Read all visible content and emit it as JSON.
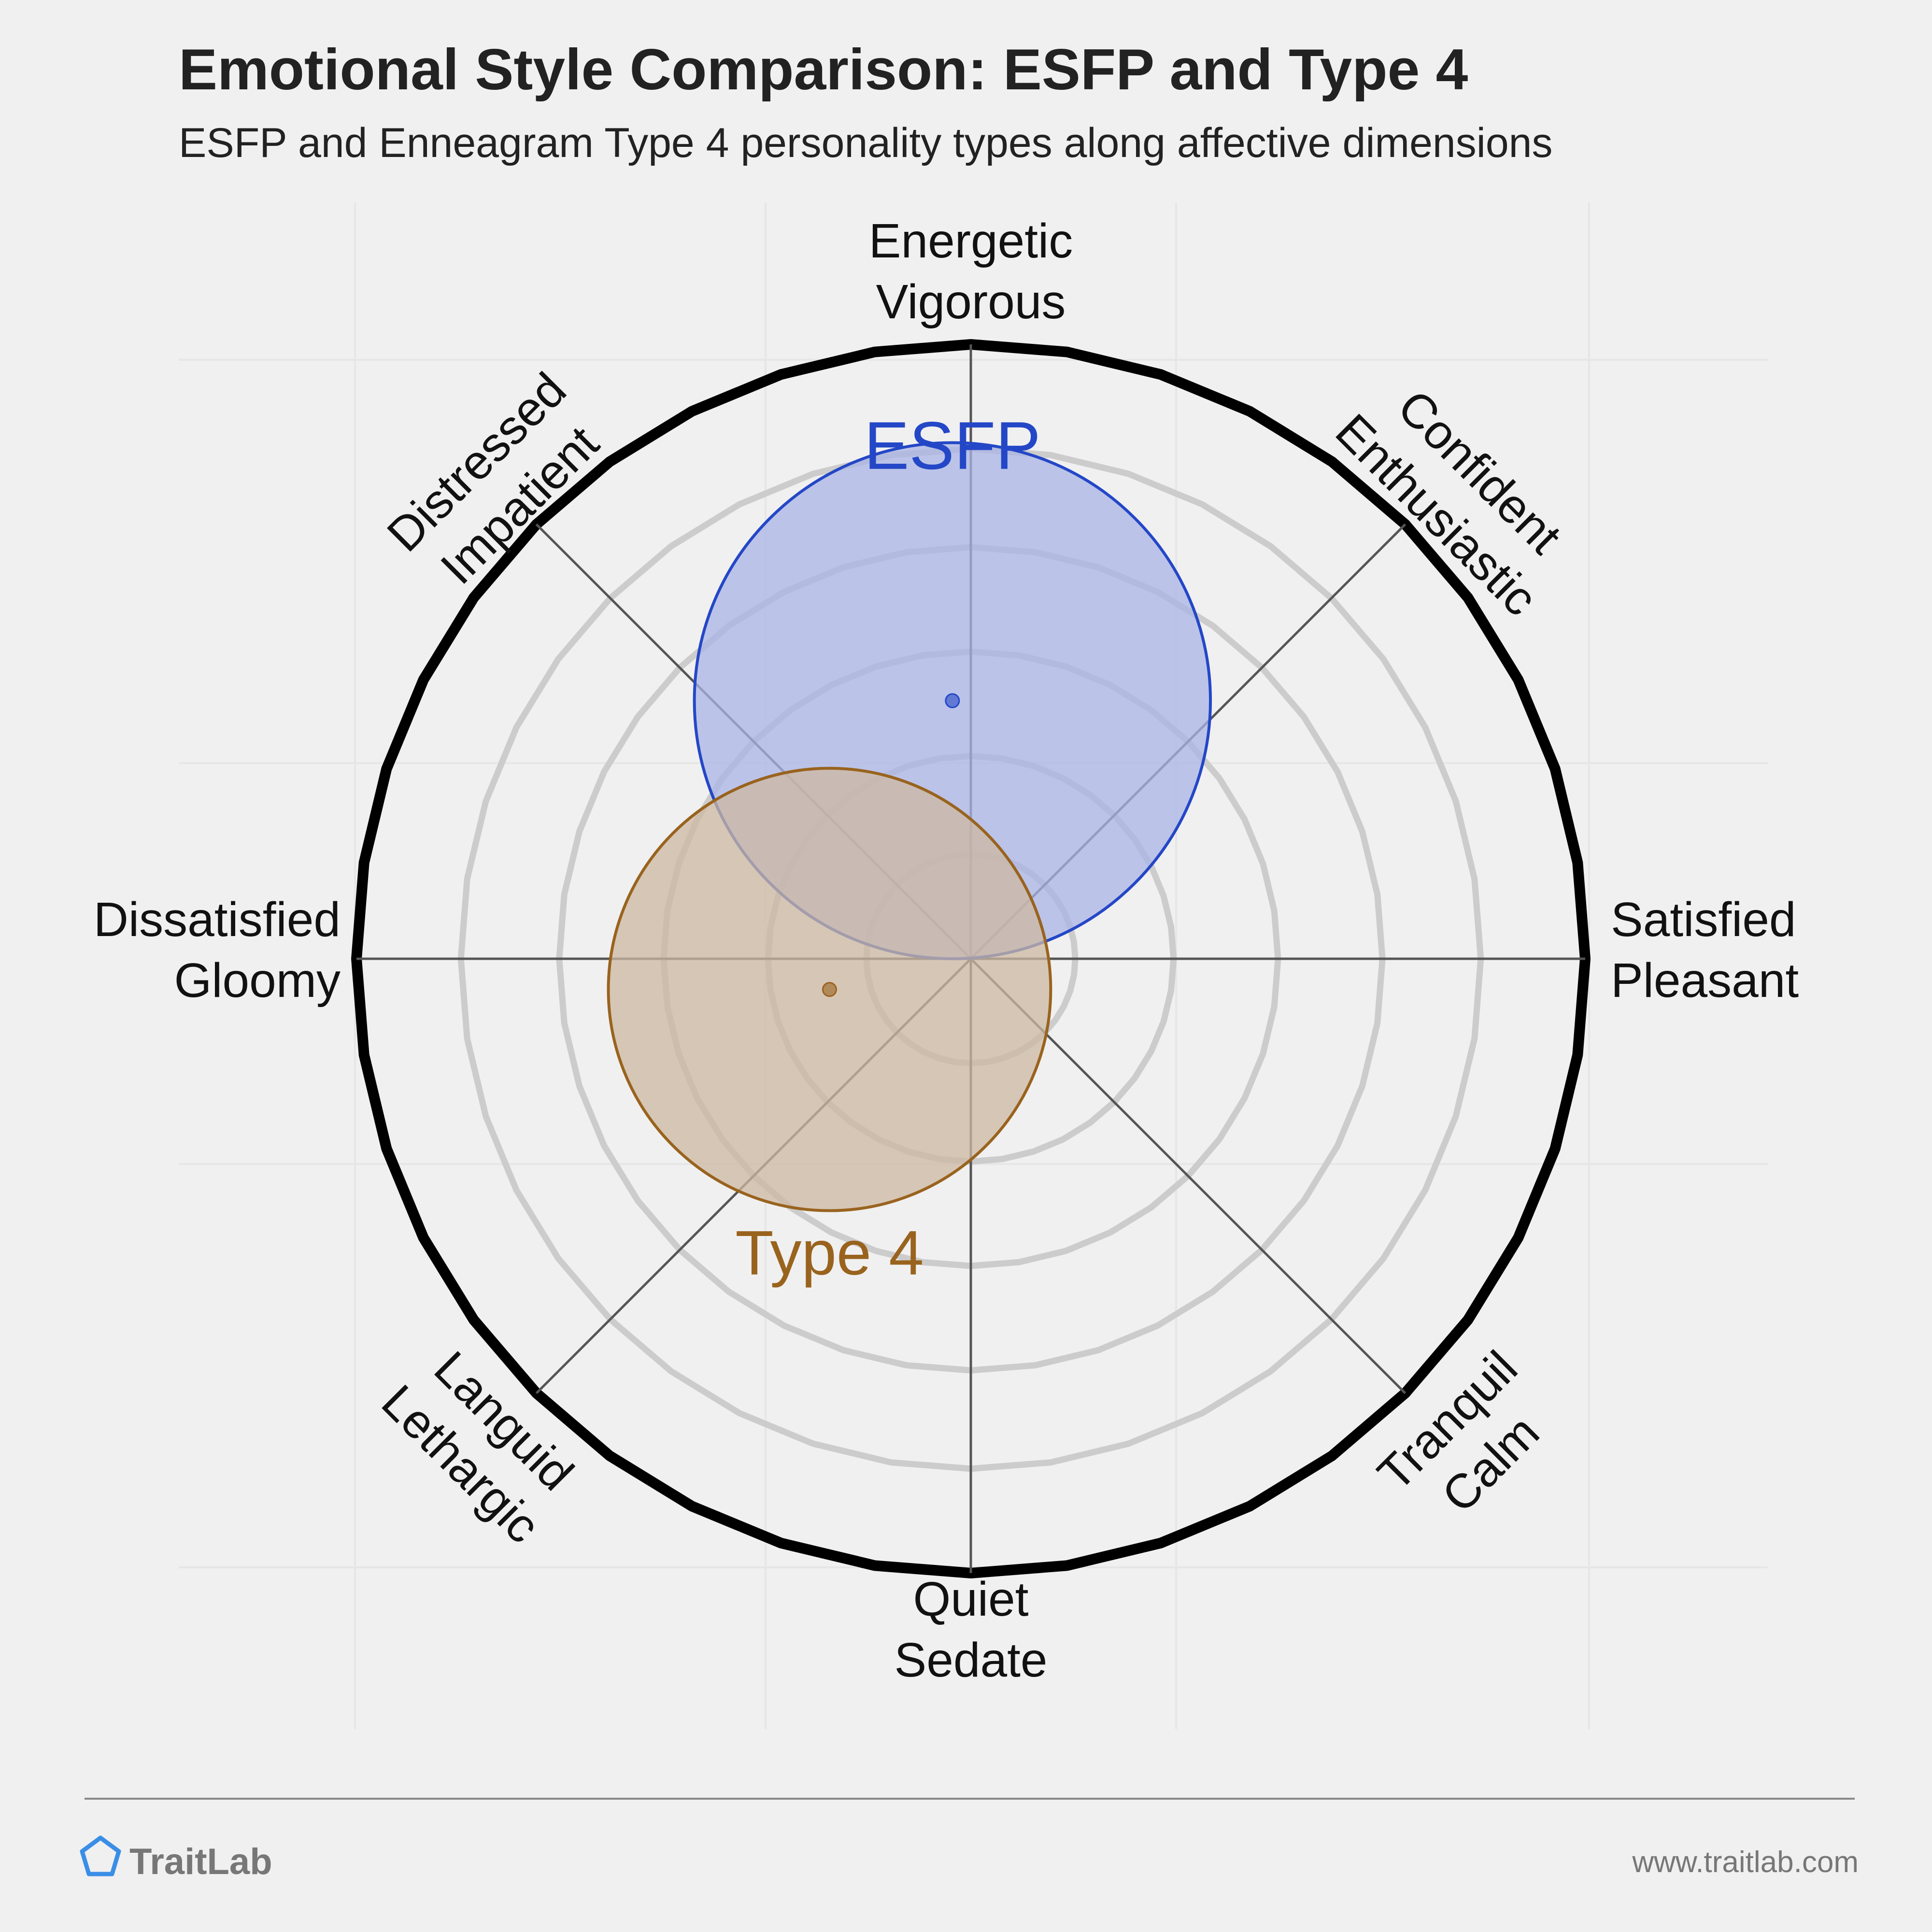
{
  "header": {
    "title": "Emotional Style Comparison: ESFP and Type 4",
    "subtitle": "ESFP and Enneagram Type 4 personality types along affective dimensions"
  },
  "chart_data": {
    "type": "scatter",
    "subtype": "circumplex",
    "axes": [
      {
        "key": "top",
        "angle_deg": 90,
        "lines": [
          "Energetic",
          "Vigorous"
        ]
      },
      {
        "key": "top-right",
        "angle_deg": 45,
        "lines": [
          "Confident",
          "Enthusiastic"
        ]
      },
      {
        "key": "right",
        "angle_deg": 0,
        "lines": [
          "Satisfied",
          "Pleasant"
        ]
      },
      {
        "key": "bottom-right",
        "angle_deg": -45,
        "lines": [
          "Tranquil",
          "Calm"
        ]
      },
      {
        "key": "bottom",
        "angle_deg": -90,
        "lines": [
          "Quiet",
          "Sedate"
        ]
      },
      {
        "key": "bottom-left",
        "angle_deg": -135,
        "lines": [
          "Languid",
          "Lethargic"
        ]
      },
      {
        "key": "left",
        "angle_deg": 180,
        "lines": [
          "Dissatisfied",
          "Gloomy"
        ]
      },
      {
        "key": "top-left",
        "angle_deg": 135,
        "lines": [
          "Distressed",
          "Impatient"
        ]
      }
    ],
    "x_range": [
      -1,
      1
    ],
    "y_range": [
      -1,
      1
    ],
    "rings": [
      0.17,
      0.33,
      0.5,
      0.67,
      0.83
    ],
    "grid": true,
    "series": [
      {
        "name": "ESFP",
        "x": -0.03,
        "y": 0.42,
        "spread": 0.42,
        "color": "#2447c7",
        "fill": "#aab4e6"
      },
      {
        "name": "Type 4",
        "x": -0.23,
        "y": -0.05,
        "spread": 0.36,
        "color": "#99631e",
        "fill": "#cdb8a1"
      }
    ]
  },
  "footer": {
    "brand": "TraitLab",
    "url": "www.traitlab.com"
  },
  "colors": {
    "background": "#f0f0f0",
    "ring": "#cccccc",
    "outer_ring": "#000000",
    "axis_line": "#555555",
    "brand_icon": "#3a8ee6",
    "brand_text": "#777777",
    "url_text": "#777777"
  }
}
